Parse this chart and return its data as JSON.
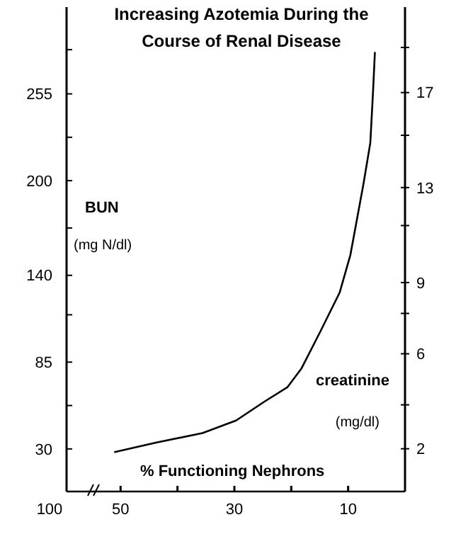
{
  "chart_data": {
    "type": "line",
    "title": "Increasing Azotemia During the Course of Renal Disease",
    "xlabel": "% Functioning Nephrons",
    "ylabel": "BUN",
    "y2label": "creatinine",
    "annotations": [
      "(mg N/dl)",
      "(mg/dl)",
      "100"
    ],
    "x": [
      51,
      43.8,
      35.6,
      29.7,
      24.7,
      20.7,
      18.2,
      14.8,
      11.5,
      9.6,
      7.3,
      6.1,
      5.6,
      5.3
    ],
    "series": [
      {
        "color": "#000000",
        "values": [
          28,
          34,
          40,
          48,
          60,
          69,
          81,
          105,
          129,
          153,
          198,
          224,
          258,
          281
        ]
      }
    ],
    "xlim": [
      59.5,
      0
    ],
    "xticks": [
      50,
      {
        "value": 40,
        "label": null
      },
      30,
      {
        "value": 20,
        "label": null
      },
      10
    ],
    "ylim": [
      3,
      310
    ],
    "yticks": [
      30,
      {
        "value": 57.5,
        "label": null
      },
      85,
      {
        "value": 115,
        "label": null
      },
      140,
      {
        "value": 170,
        "label": null
      },
      200,
      {
        "value": 227.5,
        "label": null
      },
      255,
      {
        "value": 283,
        "label": null
      }
    ],
    "y2lim": [
      0.2,
      20.6
    ],
    "y2ticks": [
      2,
      {
        "value": 3.85,
        "label": null
      },
      6,
      {
        "value": 7.7,
        "label": null
      },
      9,
      {
        "value": 11.4,
        "label": null
      },
      13,
      {
        "value": 15.2,
        "label": null
      },
      17,
      {
        "value": 18.9,
        "label": null
      }
    ],
    "marker": "none",
    "line_style": "solid"
  }
}
